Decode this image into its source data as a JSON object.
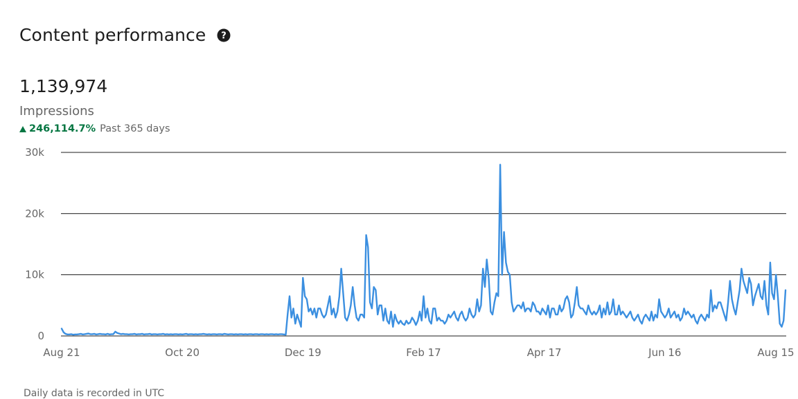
{
  "header": {
    "title": "Content performance",
    "help_icon": "question-circle-icon"
  },
  "summary": {
    "total": "1,139,974",
    "metric_label": "Impressions",
    "change_pct": "246,114.7%",
    "change_direction": "up",
    "period": "Past 365 days"
  },
  "footnote": "Daily data is recorded in UTC",
  "colors": {
    "line": "#3b8fe0",
    "positive": "#057642",
    "grid": "#1d1d1d",
    "axis_text": "#666666"
  },
  "chart_data": {
    "type": "line",
    "title": "",
    "xlabel": "",
    "ylabel": "",
    "ylim": [
      0,
      30000
    ],
    "yticks": [
      0,
      10000,
      20000,
      30000
    ],
    "ytick_labels": [
      "0",
      "10k",
      "20k",
      "30k"
    ],
    "xticks": [
      "Aug 21",
      "Oct 20",
      "Dec 19",
      "Feb 17",
      "Apr 17",
      "Jun 16",
      "Aug 15"
    ],
    "grid": true,
    "x_start": "Aug 21",
    "x_end": "Aug 15",
    "series": [
      {
        "values": [
          1200,
          600,
          350,
          250,
          250,
          300,
          200,
          250,
          250,
          300,
          350,
          250,
          300,
          350,
          400,
          300,
          300,
          350,
          250,
          300,
          350,
          300,
          300,
          250,
          350,
          250,
          300,
          300,
          700,
          500,
          400,
          300,
          350,
          300,
          300,
          250,
          300,
          300,
          350,
          250,
          300,
          300,
          350,
          250,
          300,
          300,
          350,
          250,
          300,
          300,
          250,
          300,
          300,
          350,
          250,
          300,
          250,
          300,
          250,
          300,
          300,
          250,
          300,
          250,
          300,
          350,
          250,
          300,
          300,
          250,
          300,
          250,
          300,
          300,
          350,
          300,
          250,
          300,
          250,
          300,
          300,
          250,
          300,
          300,
          250,
          350,
          300,
          250,
          300,
          300,
          250,
          300,
          250,
          300,
          300,
          250,
          300,
          250,
          300,
          300,
          250,
          300,
          300,
          250,
          300,
          300,
          250,
          300,
          250,
          300,
          300,
          250,
          300,
          250,
          300,
          300,
          250,
          200,
          3500,
          6500,
          3000,
          4500,
          2000,
          3500,
          2500,
          1500,
          9500,
          6500,
          6000,
          4000,
          4500,
          3500,
          4500,
          3000,
          4500,
          4500,
          3500,
          3000,
          3500,
          5000,
          6500,
          3500,
          4500,
          3000,
          4000,
          6500,
          11000,
          7000,
          3000,
          2500,
          3500,
          5000,
          8000,
          5000,
          3000,
          2500,
          3500,
          3500,
          3000,
          16500,
          14500,
          5500,
          4500,
          8000,
          7500,
          3500,
          5000,
          5000,
          2500,
          4500,
          2500,
          2000,
          4000,
          1500,
          3500,
          2500,
          2000,
          2500,
          2000,
          1800,
          2500,
          2000,
          2200,
          3000,
          2500,
          1800,
          2500,
          4000,
          2500,
          6500,
          3000,
          4500,
          2500,
          2000,
          4500,
          4500,
          2500,
          3000,
          2500,
          2500,
          2000,
          2500,
          3500,
          3000,
          3500,
          4000,
          3000,
          2500,
          3500,
          4000,
          3000,
          2500,
          3000,
          4500,
          3500,
          3000,
          3500,
          6000,
          4000,
          5000,
          11000,
          8000,
          12500,
          9500,
          4000,
          3500,
          5500,
          7000,
          6500,
          28000,
          10000,
          17000,
          12000,
          10500,
          10000,
          5500,
          4000,
          4500,
          5000,
          5000,
          4500,
          5500,
          4000,
          4500,
          4500,
          4000,
          5500,
          5000,
          4000,
          4000,
          3500,
          4500,
          4000,
          3500,
          5000,
          3000,
          4500,
          4500,
          3500,
          3500,
          5000,
          4000,
          4500,
          6000,
          6500,
          5500,
          3000,
          3500,
          5500,
          8000,
          5000,
          4500,
          4500,
          4000,
          3500,
          5000,
          4000,
          3500,
          4000,
          3500,
          4000,
          5000,
          3000,
          4500,
          3500,
          5500,
          3500,
          4000,
          6000,
          3500,
          3500,
          5000,
          3500,
          4000,
          3500,
          3000,
          3500,
          4000,
          3000,
          2500,
          3000,
          3500,
          2500,
          2000,
          3000,
          3500,
          3000,
          2500,
          4000,
          2500,
          3500,
          3000,
          6000,
          4000,
          3500,
          3000,
          3500,
          4500,
          3000,
          3500,
          4000,
          3000,
          3500,
          2500,
          3000,
          4500,
          3500,
          4000,
          3500,
          3000,
          3500,
          2500,
          2000,
          3000,
          3500,
          3000,
          2500,
          3500,
          3000,
          7500,
          4000,
          5000,
          4500,
          5500,
          5500,
          4500,
          3500,
          2500,
          5500,
          9000,
          6000,
          4500,
          3500,
          5500,
          7500,
          11000,
          9000,
          8000,
          7000,
          9500,
          8500,
          5000,
          6500,
          7500,
          8500,
          6500,
          6000,
          9000,
          5000,
          3500,
          12000,
          7000,
          6000,
          10000,
          6500,
          2000,
          1500,
          2500,
          7500
        ]
      }
    ]
  }
}
